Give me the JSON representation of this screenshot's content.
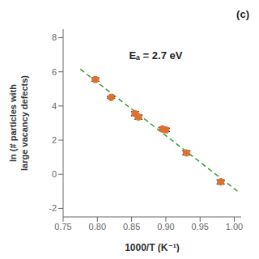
{
  "chart_data": {
    "type": "scatter",
    "xlabel": "1000/T (K⁻¹)",
    "ylabel": "ln (# particles with\nlarge vacancy defects)",
    "annotations": [
      "Eₐ = 2.7 eV",
      "(c)"
    ],
    "series": [
      {
        "type": "line",
        "line_style": "dashed",
        "color": "#3a9a3a",
        "x": [
          0.775,
          1.005
        ],
        "values": [
          6.15875,
          -1.00575
        ]
      },
      {
        "type": "scatter",
        "marker": "circle",
        "color": "#e07030",
        "x": [
          0.797,
          0.82,
          0.855,
          0.86,
          0.895,
          0.9,
          0.93,
          0.98
        ],
        "values": [
          5.55,
          4.5,
          3.55,
          3.35,
          2.65,
          2.6,
          1.25,
          -0.45
        ],
        "y_err": [
          0.1,
          0.05,
          0.12,
          0.12,
          0.1,
          0.1,
          0.12,
          0.12
        ]
      }
    ],
    "xlim": [
      0.75,
      1.01
    ],
    "ylim": [
      -2.5,
      8.5
    ],
    "xticks": [
      0.75,
      {
        "value": 0.8,
        "label": "0.80"
      },
      0.85,
      {
        "value": 0.9,
        "label": "0.90"
      },
      0.95,
      {
        "value": 1,
        "label": "1.00"
      }
    ],
    "yticks": [
      -2,
      0,
      2,
      4,
      6,
      8
    ],
    "grid": false
  }
}
